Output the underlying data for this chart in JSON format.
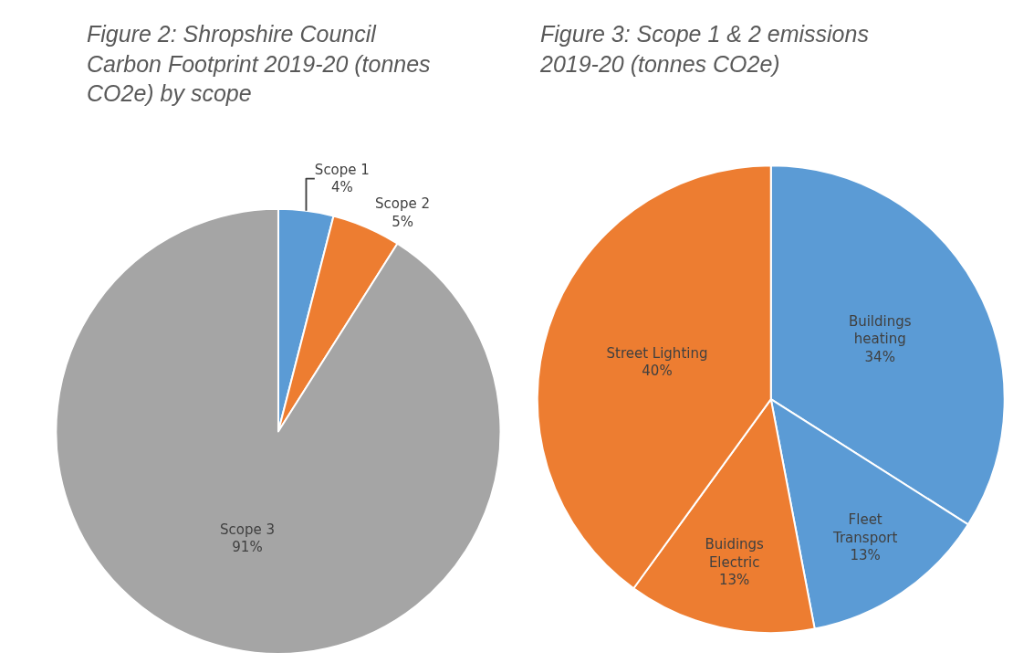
{
  "chart_data": [
    {
      "type": "pie",
      "title": "Figure 2: Shropshire Council Carbon Footprint 2019-20 (tonnes CO2e) by scope",
      "categories": [
        "Scope 1",
        "Scope 2",
        "Scope 3"
      ],
      "values": [
        4,
        5,
        91
      ],
      "value_labels": [
        "4%",
        "5%",
        "91%"
      ],
      "colors": [
        "#5b9bd5",
        "#ed7d31",
        "#a5a5a5"
      ]
    },
    {
      "type": "pie",
      "title": "Figure 3: Scope 1 & 2 emissions 2019-20 (tonnes CO2e)",
      "categories": [
        "Buildings heating",
        "Fleet Transport",
        "Buidings Electric",
        "Street Lighting"
      ],
      "values": [
        34,
        13,
        13,
        40
      ],
      "value_labels": [
        "34%",
        "13%",
        "13%",
        "40%"
      ],
      "colors": [
        "#5b9bd5",
        "#5b9bd5",
        "#ed7d31",
        "#ed7d31"
      ]
    }
  ]
}
